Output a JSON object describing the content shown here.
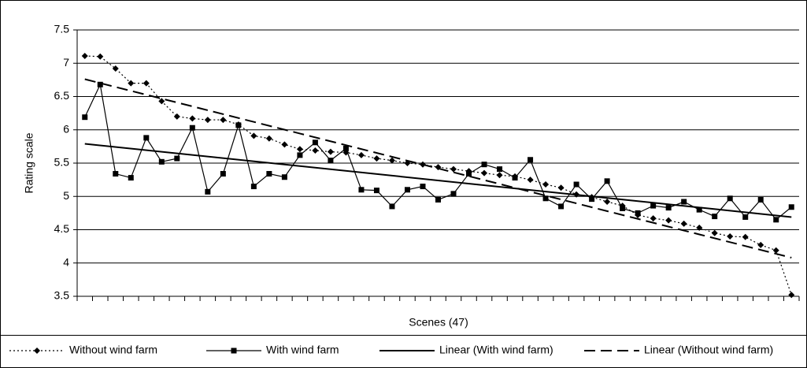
{
  "chart_data": {
    "type": "line",
    "y_label": "Rating scale",
    "x_label": "Scenes (47)",
    "ylim": [
      3.5,
      7.5
    ],
    "yticks": [
      3.5,
      4,
      4.5,
      5,
      5.5,
      6,
      6.5,
      7,
      7.5
    ],
    "grid": true,
    "legend": "bottom",
    "series": [
      {
        "name": "Without wind farm",
        "color": "#000000",
        "marker": "diamond",
        "dash": "dotted",
        "values": [
          7.11,
          7.1,
          6.92,
          6.7,
          6.7,
          6.43,
          6.2,
          6.17,
          6.15,
          6.15,
          6.08,
          5.91,
          5.87,
          5.78,
          5.71,
          5.69,
          5.67,
          5.66,
          5.62,
          5.57,
          5.54,
          5.5,
          5.48,
          5.44,
          5.41,
          5.38,
          5.35,
          5.32,
          5.3,
          5.25,
          5.18,
          5.13,
          5.03,
          4.99,
          4.92,
          4.86,
          4.72,
          4.67,
          4.64,
          4.59,
          4.53,
          4.45,
          4.4,
          4.39,
          4.27,
          4.19,
          3.52
        ]
      },
      {
        "name": "With wind farm",
        "color": "#000000",
        "marker": "square",
        "dash": "solid",
        "values": [
          6.19,
          6.68,
          5.34,
          5.28,
          5.88,
          5.52,
          5.57,
          6.03,
          5.07,
          5.34,
          6.07,
          5.15,
          5.34,
          5.29,
          5.62,
          5.81,
          5.54,
          5.72,
          5.1,
          5.09,
          4.85,
          5.1,
          5.15,
          4.95,
          5.04,
          5.34,
          5.48,
          5.41,
          5.28,
          5.55,
          4.97,
          4.85,
          5.18,
          4.96,
          5.23,
          4.82,
          4.75,
          4.86,
          4.83,
          4.92,
          4.8,
          4.7,
          4.97,
          4.69,
          4.95,
          4.65,
          4.84
        ]
      }
    ],
    "trendlines": [
      {
        "name": "Linear (With wind farm)",
        "color": "#000000",
        "dash": "solid",
        "values": [
          5.79,
          4.69
        ]
      },
      {
        "name": "Linear (Without wind farm)",
        "color": "#000000",
        "dash": "dashed",
        "values": [
          6.76,
          4.08
        ]
      }
    ]
  }
}
